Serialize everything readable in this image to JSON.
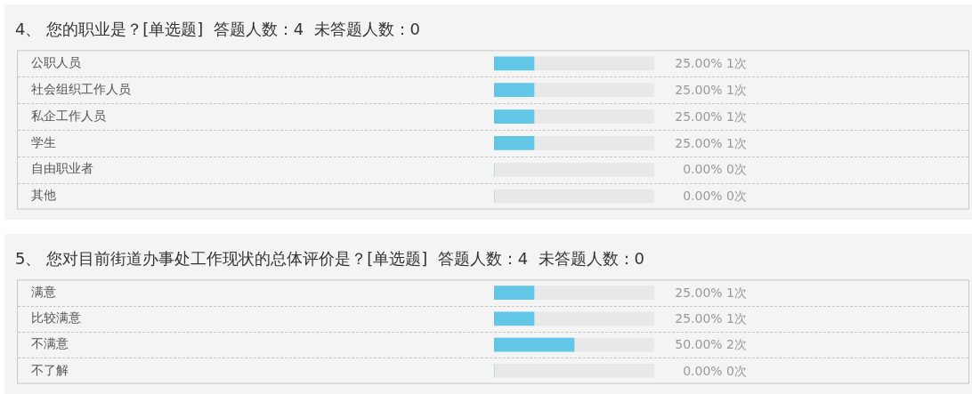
{
  "chart_data": [
    {
      "type": "bar",
      "orientation": "horizontal",
      "stacked": true,
      "title": "4、 您的职业是？[单选题]  答题人数：4  未答题人数：0",
      "categories": [
        "公职人员",
        "社会组织工作人员",
        "私企工作人员",
        "学生",
        "自由职业者",
        "其他"
      ],
      "series": [
        {
          "color": "#62c6e6",
          "values": [
            25,
            25,
            25,
            25,
            0,
            0
          ],
          "value_labels": [
            "25.00% 1次",
            "25.00% 1次",
            "25.00% 1次",
            "25.00% 1次",
            "0.00% 0次",
            "0.00% 0次"
          ]
        },
        {
          "color": "#e8e8e8",
          "values": [
            75,
            75,
            75,
            75,
            100,
            100
          ]
        }
      ],
      "xlim": [
        0,
        100
      ],
      "tick_labels": "y",
      "grid": "y"
    },
    {
      "type": "bar",
      "orientation": "horizontal",
      "stacked": true,
      "title": "5、 您对目前街道办事处工作现状的总体评价是？[单选题]  答题人数：4  未答题人数：0",
      "categories": [
        "满意",
        "比较满意",
        "不满意",
        "不了解"
      ],
      "series": [
        {
          "color": "#62c6e6",
          "values": [
            25,
            25,
            50,
            0
          ],
          "value_labels": [
            "25.00% 1次",
            "25.00% 1次",
            "50.00% 2次",
            "0.00% 0次"
          ]
        },
        {
          "color": "#e8e8e8",
          "values": [
            75,
            75,
            50,
            100
          ]
        }
      ],
      "xlim": [
        0,
        100
      ],
      "tick_labels": "y",
      "grid": "y"
    }
  ]
}
